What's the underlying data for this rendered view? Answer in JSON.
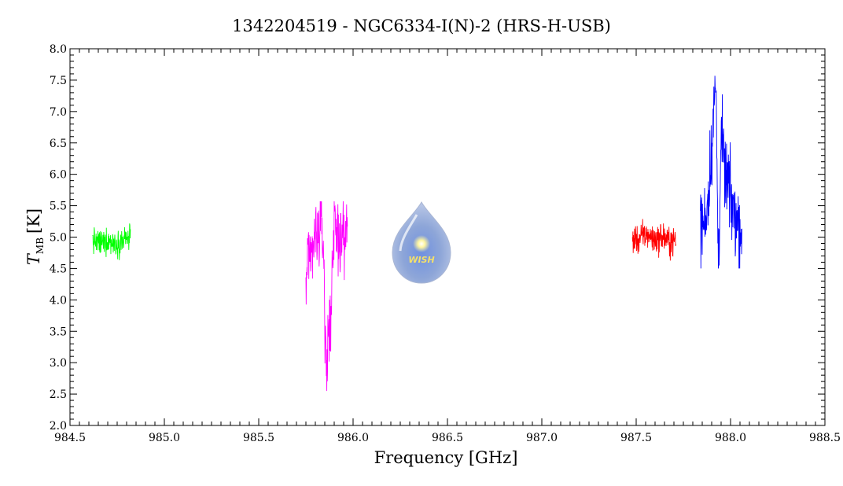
{
  "chart_data": {
    "type": "line",
    "title": "1342204519 - NGC6334-I(N)-2 (HRS-H-USB)",
    "xlabel": "Frequency [GHz]",
    "ylabel_main": "T",
    "ylabel_sub": "MB",
    "ylabel_unit": "[K]",
    "xlim": [
      984.5,
      988.5
    ],
    "ylim": [
      2.0,
      8.0
    ],
    "x_ticks": [
      "984.5",
      "985.0",
      "985.5",
      "986.0",
      "986.5",
      "987.0",
      "987.5",
      "988.0",
      "988.5"
    ],
    "y_ticks": [
      "2.0",
      "2.5",
      "3.0",
      "3.5",
      "4.0",
      "4.5",
      "5.0",
      "5.5",
      "6.0",
      "6.5",
      "7.0",
      "7.5",
      "8.0"
    ],
    "grid": false,
    "legend": "none",
    "series": [
      {
        "color": "#00ff00",
        "x": [
          984.62,
          984.66,
          984.7,
          984.74,
          984.78,
          984.82
        ],
        "values": [
          4.95,
          4.9,
          4.95,
          4.9,
          4.95,
          5.0
        ],
        "noise_range": [
          4.45,
          5.48
        ]
      },
      {
        "color": "#ff00ff",
        "x": [
          985.75,
          985.77,
          985.79,
          985.81,
          985.83,
          985.845,
          985.85,
          985.86,
          985.87,
          985.88,
          985.89,
          985.9,
          985.92,
          985.94,
          985.97
        ],
        "values": [
          4.4,
          4.55,
          4.85,
          5.05,
          5.2,
          4.85,
          3.6,
          2.75,
          3.6,
          3.5,
          4.7,
          5.1,
          5.0,
          5.0,
          5.1
        ],
        "noise_range": [
          2.55,
          5.57
        ]
      },
      {
        "color": "#ff0000",
        "x": [
          987.48,
          987.52,
          987.56,
          987.6,
          987.64,
          987.68,
          987.71
        ],
        "values": [
          4.95,
          4.98,
          5.05,
          4.95,
          5.0,
          4.92,
          4.95
        ],
        "noise_range": [
          4.48,
          5.65
        ]
      },
      {
        "color": "#0000ff",
        "x": [
          987.84,
          987.86,
          987.88,
          987.9,
          987.92,
          987.925,
          987.935,
          987.95,
          987.97,
          987.99,
          988.01,
          988.03,
          988.06
        ],
        "values": [
          5.2,
          5.2,
          5.6,
          6.4,
          7.4,
          7.0,
          4.5,
          6.6,
          6.0,
          5.8,
          5.5,
          5.3,
          5.1
        ],
        "noise_range": [
          4.5,
          7.67
        ]
      }
    ]
  },
  "logo": {
    "text": "WISH"
  }
}
